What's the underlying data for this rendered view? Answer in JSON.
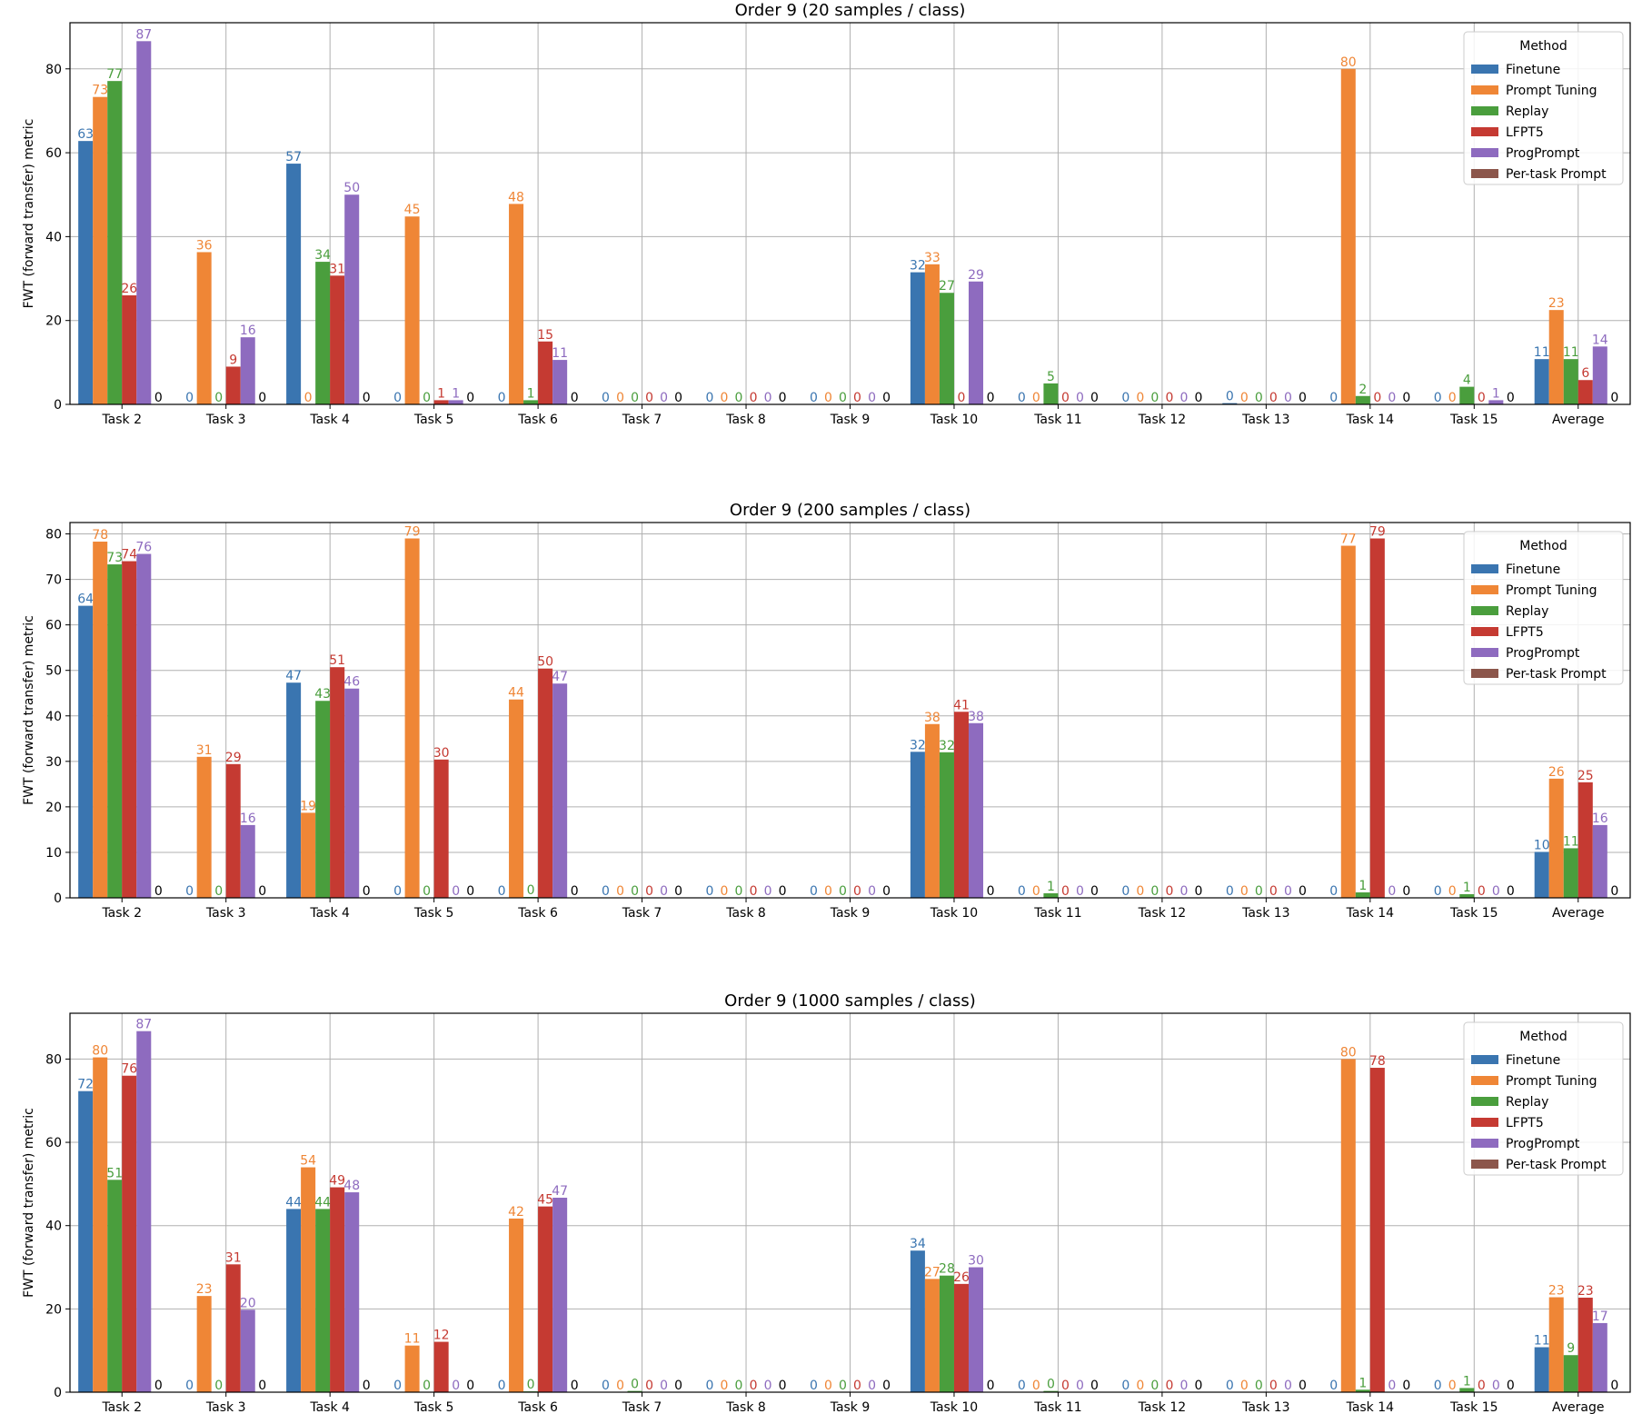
{
  "colors": {
    "Finetune": "#3a75b0",
    "Prompt Tuning": "#ef8636",
    "Replay": "#4a9e3d",
    "LFPT5": "#c53a32",
    "ProgPrompt": "#8e6bbf",
    "Per-task Prompt": "#8c564b"
  },
  "chart_data": [
    {
      "type": "bar",
      "title": "Order 9 (20 samples / class)",
      "xlabel": "",
      "ylabel": "FWT (forward transfer) metric",
      "ylim": [
        0,
        91
      ],
      "yticks": [
        0,
        20,
        40,
        60,
        80
      ],
      "grid": true,
      "legend": {
        "title": "Method",
        "placement": "top-right"
      },
      "categories": [
        "Task 2",
        "Task 3",
        "Task 4",
        "Task 5",
        "Task 6",
        "Task 7",
        "Task 8",
        "Task 9",
        "Task 10",
        "Task 11",
        "Task 12",
        "Task 13",
        "Task 14",
        "Task 15",
        "Average"
      ],
      "series": [
        {
          "name": "Finetune",
          "values": [
            62.8,
            0,
            57.4,
            0,
            0,
            0,
            0,
            0,
            31.5,
            0,
            0,
            0.3,
            0,
            0,
            10.8
          ]
        },
        {
          "name": "Prompt Tuning",
          "values": [
            73.3,
            36.3,
            0,
            44.8,
            47.8,
            0,
            0,
            0,
            33.4,
            0,
            0,
            0,
            80.0,
            0,
            22.5
          ]
        },
        {
          "name": "Replay",
          "values": [
            77.1,
            0,
            34.0,
            0,
            1.0,
            0,
            0,
            0,
            26.6,
            5.0,
            0,
            0,
            2.0,
            4.2,
            10.8
          ]
        },
        {
          "name": "LFPT5",
          "values": [
            26.0,
            9.0,
            30.7,
            1.0,
            15.0,
            0,
            0,
            0,
            0,
            0,
            0,
            0,
            0,
            0,
            5.8
          ]
        },
        {
          "name": "ProgPrompt",
          "values": [
            86.6,
            16.0,
            50.0,
            1.0,
            10.6,
            0,
            0,
            0,
            29.3,
            0,
            0,
            0,
            0,
            1.0,
            13.8
          ]
        },
        {
          "name": "Per-task Prompt",
          "values": [
            0,
            0,
            0,
            0,
            0,
            0,
            0,
            0,
            0,
            0,
            0,
            0,
            0,
            0,
            0
          ]
        }
      ],
      "labels": [
        [
          "63",
          "0",
          "57",
          "0",
          "0",
          "0",
          "0",
          "0",
          "32",
          "0",
          "0",
          "0",
          "0",
          "0",
          "11"
        ],
        [
          "73",
          "36",
          "0",
          "45",
          "48",
          "0",
          "0",
          "0",
          "33",
          "0",
          "0",
          "0",
          "80",
          "0",
          "23"
        ],
        [
          "77",
          "0",
          "34",
          "0",
          "1",
          "0",
          "0",
          "0",
          "27",
          "5",
          "0",
          "0",
          "2",
          "4",
          "11"
        ],
        [
          "26",
          "9",
          "31",
          "1",
          "15",
          "0",
          "0",
          "0",
          "0",
          "0",
          "0",
          "0",
          "0",
          "0",
          "6"
        ],
        [
          "87",
          "16",
          "50",
          "1",
          "11",
          "0",
          "0",
          "0",
          "29",
          "0",
          "0",
          "0",
          "0",
          "1",
          "14"
        ],
        [
          "0",
          "0",
          "0",
          "0",
          "0",
          "0",
          "0",
          "0",
          "0",
          "0",
          "0",
          "0",
          "0",
          "0",
          "0"
        ]
      ]
    },
    {
      "type": "bar",
      "title": "Order 9 (200 samples / class)",
      "xlabel": "",
      "ylabel": "FWT (forward transfer) metric",
      "ylim": [
        0,
        82.5
      ],
      "yticks": [
        0,
        10,
        20,
        30,
        40,
        50,
        60,
        70,
        80
      ],
      "grid": true,
      "legend": {
        "title": "Method",
        "placement": "top-right"
      },
      "categories": [
        "Task 2",
        "Task 3",
        "Task 4",
        "Task 5",
        "Task 6",
        "Task 7",
        "Task 8",
        "Task 9",
        "Task 10",
        "Task 11",
        "Task 12",
        "Task 13",
        "Task 14",
        "Task 15",
        "Average"
      ],
      "series": [
        {
          "name": "Finetune",
          "values": [
            64.2,
            0,
            47.3,
            0,
            0,
            0,
            0,
            0,
            32.1,
            0,
            0,
            0,
            0,
            0,
            10.1
          ]
        },
        {
          "name": "Prompt Tuning",
          "values": [
            78.3,
            31.0,
            18.7,
            79.0,
            43.6,
            0,
            0,
            0,
            38.2,
            0,
            0,
            0,
            77.4,
            0,
            26.2
          ]
        },
        {
          "name": "Replay",
          "values": [
            73.3,
            0,
            43.3,
            0,
            0.2,
            0,
            0,
            0,
            32.0,
            1.0,
            0,
            0,
            1.2,
            0.8,
            10.9
          ]
        },
        {
          "name": "LFPT5",
          "values": [
            74.0,
            29.4,
            50.7,
            30.4,
            50.4,
            0,
            0,
            0,
            40.9,
            0,
            0,
            0,
            79.0,
            0,
            25.4
          ]
        },
        {
          "name": "ProgPrompt",
          "values": [
            75.6,
            16.0,
            46.0,
            0,
            47.1,
            0,
            0,
            0,
            38.4,
            0,
            0,
            0,
            0,
            0,
            16.0
          ]
        },
        {
          "name": "Per-task Prompt",
          "values": [
            0,
            0,
            0,
            0,
            0,
            0,
            0,
            0,
            0,
            0,
            0,
            0,
            0,
            0,
            0
          ]
        }
      ],
      "labels": [
        [
          "64",
          "0",
          "47",
          "0",
          "0",
          "0",
          "0",
          "0",
          "32",
          "0",
          "0",
          "0",
          "0",
          "0",
          "10"
        ],
        [
          "78",
          "31",
          "19",
          "79",
          "44",
          "0",
          "0",
          "0",
          "38",
          "0",
          "0",
          "0",
          "77",
          "0",
          "26"
        ],
        [
          "73",
          "0",
          "43",
          "0",
          "0",
          "0",
          "0",
          "0",
          "32",
          "1",
          "0",
          "0",
          "1",
          "1",
          "11"
        ],
        [
          "74",
          "29",
          "51",
          "30",
          "50",
          "0",
          "0",
          "0",
          "41",
          "0",
          "0",
          "0",
          "79",
          "0",
          "25"
        ],
        [
          "76",
          "16",
          "46",
          "0",
          "47",
          "0",
          "0",
          "0",
          "38",
          "0",
          "0",
          "0",
          "0",
          "0",
          "16"
        ],
        [
          "0",
          "0",
          "0",
          "0",
          "0",
          "0",
          "0",
          "0",
          "0",
          "0",
          "0",
          "0",
          "0",
          "0",
          "0"
        ]
      ]
    },
    {
      "type": "bar",
      "title": "Order 9 (1000 samples / class)",
      "xlabel": "",
      "ylabel": "FWT (forward transfer) metric",
      "ylim": [
        0,
        91
      ],
      "yticks": [
        0,
        20,
        40,
        60,
        80
      ],
      "grid": true,
      "legend": {
        "title": "Method",
        "placement": "top-right"
      },
      "categories": [
        "Task 2",
        "Task 3",
        "Task 4",
        "Task 5",
        "Task 6",
        "Task 7",
        "Task 8",
        "Task 9",
        "Task 10",
        "Task 11",
        "Task 12",
        "Task 13",
        "Task 14",
        "Task 15",
        "Average"
      ],
      "series": [
        {
          "name": "Finetune",
          "values": [
            72.3,
            0,
            44.0,
            0,
            0,
            0,
            0,
            0,
            34.0,
            0,
            0,
            0,
            0,
            0,
            10.8
          ]
        },
        {
          "name": "Prompt Tuning",
          "values": [
            80.4,
            23.1,
            54.0,
            11.2,
            41.7,
            0,
            0,
            0,
            27.2,
            0,
            0,
            0,
            80.0,
            0,
            22.8
          ]
        },
        {
          "name": "Replay",
          "values": [
            51.0,
            0,
            44.0,
            0,
            0.2,
            0.3,
            0,
            0,
            28.0,
            0.3,
            0,
            0,
            0.6,
            1.0,
            8.9
          ]
        },
        {
          "name": "LFPT5",
          "values": [
            76.0,
            30.7,
            49.2,
            12.1,
            44.6,
            0,
            0,
            0,
            26.0,
            0,
            0,
            0,
            77.9,
            0,
            22.7
          ]
        },
        {
          "name": "ProgPrompt",
          "values": [
            86.7,
            19.8,
            48.0,
            0,
            46.7,
            0,
            0,
            0,
            30.0,
            0,
            0,
            0,
            0,
            0,
            16.6
          ]
        },
        {
          "name": "Per-task Prompt",
          "values": [
            0,
            0,
            0,
            0,
            0,
            0,
            0,
            0,
            0,
            0,
            0,
            0,
            0,
            0,
            0
          ]
        }
      ],
      "labels": [
        [
          "72",
          "0",
          "44",
          "0",
          "0",
          "0",
          "0",
          "0",
          "34",
          "0",
          "0",
          "0",
          "0",
          "0",
          "11"
        ],
        [
          "80",
          "23",
          "54",
          "11",
          "42",
          "0",
          "0",
          "0",
          "27",
          "0",
          "0",
          "0",
          "80",
          "0",
          "23"
        ],
        [
          "51",
          "0",
          "44",
          "0",
          "0",
          "0",
          "0",
          "0",
          "28",
          "0",
          "0",
          "0",
          "1",
          "1",
          "9"
        ],
        [
          "76",
          "31",
          "49",
          "12",
          "45",
          "0",
          "0",
          "0",
          "26",
          "0",
          "0",
          "0",
          "78",
          "0",
          "23"
        ],
        [
          "87",
          "20",
          "48",
          "0",
          "47",
          "0",
          "0",
          "0",
          "30",
          "0",
          "0",
          "0",
          "0",
          "0",
          "17"
        ],
        [
          "0",
          "0",
          "0",
          "0",
          "0",
          "0",
          "0",
          "0",
          "0",
          "0",
          "0",
          "0",
          "0",
          "0",
          "0"
        ]
      ]
    }
  ]
}
